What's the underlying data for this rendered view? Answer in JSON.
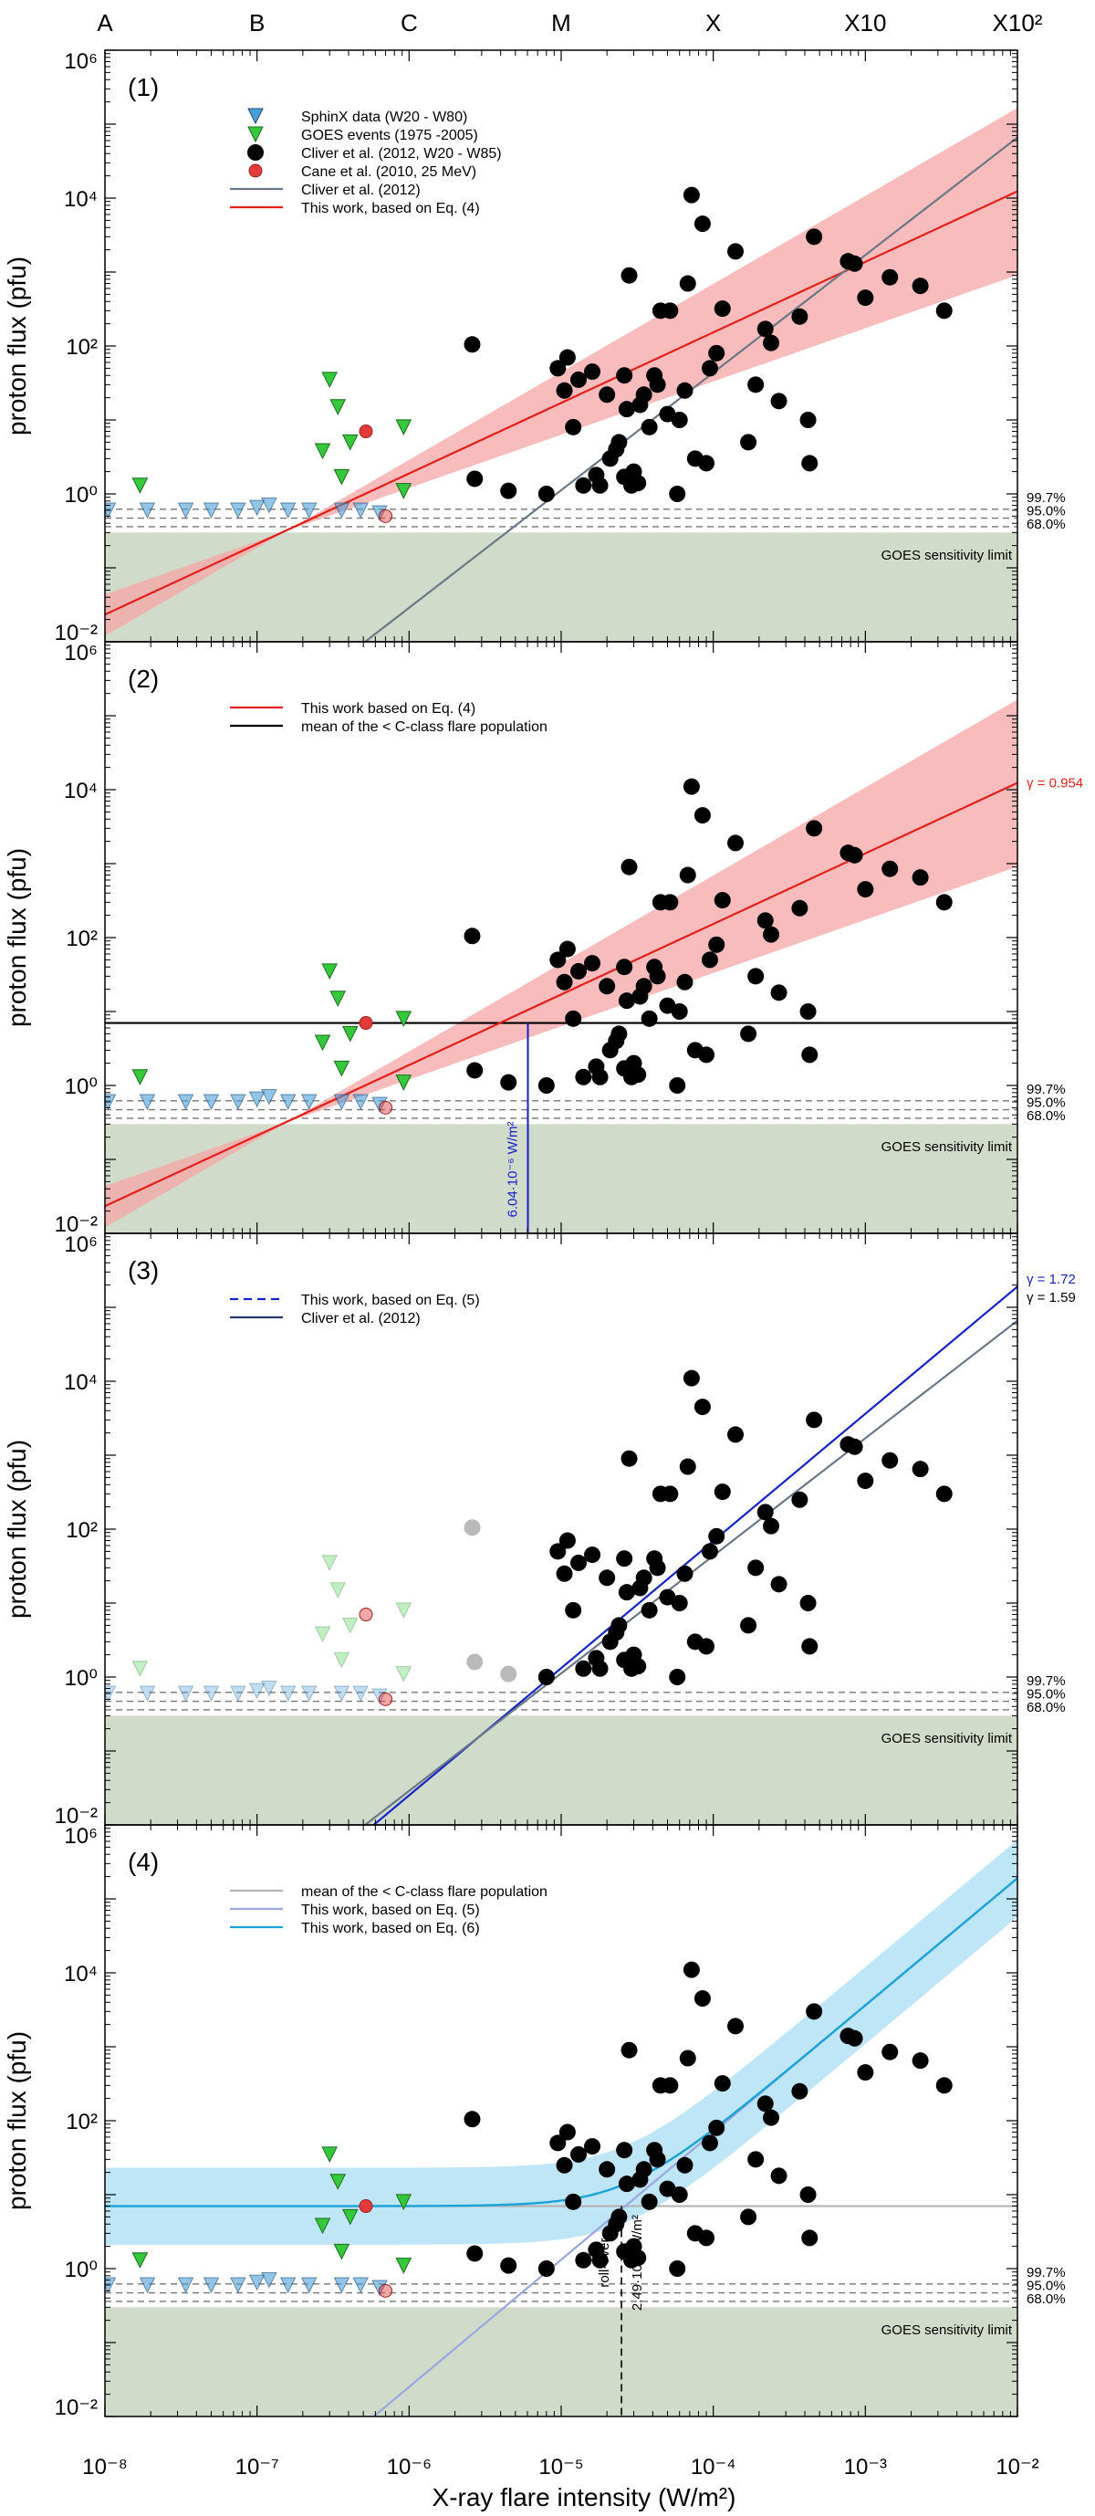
{
  "chart_data": {
    "type": "scatter",
    "title": "",
    "xlabel": "X-ray flare intensity (W/m²)",
    "ylabel": "proton flux (pfu)",
    "xscale": "log",
    "yscale": "log",
    "xlim": [
      1e-08,
      0.01
    ],
    "ylim": [
      0.01,
      1000000
    ],
    "x_tick_labels": [
      "10⁻⁸",
      "10⁻⁷",
      "10⁻⁶",
      "10⁻⁵",
      "10⁻⁴",
      "10⁻³",
      "10⁻²"
    ],
    "y_tick_labels": [
      "10⁻²",
      "10⁰",
      "10²",
      "10⁴",
      "10⁶"
    ],
    "top_axis_classes": [
      {
        "label": "A",
        "x": 1e-08
      },
      {
        "label": "B",
        "x": 1e-07
      },
      {
        "label": "C",
        "x": 1e-06
      },
      {
        "label": "M",
        "x": 1e-05
      },
      {
        "label": "X",
        "x": 0.0001
      },
      {
        "label": "X10",
        "x": 0.001
      },
      {
        "label": "X10²",
        "x": 0.01
      }
    ],
    "confidence_levels": [
      {
        "label": "99.7%",
        "y": 0.62
      },
      {
        "label": "95.0%",
        "y": 0.47
      },
      {
        "label": "68.0%",
        "y": 0.36
      }
    ],
    "sensitivity_label": "GOES sensitivity limit",
    "sensitivity_y": 0.3,
    "cliver_points": [
      [
        2.6e-06,
        105
      ],
      [
        2.7e-06,
        1.6
      ],
      [
        4.5e-06,
        1.1
      ],
      [
        8e-06,
        1.0
      ],
      [
        1.05e-05,
        25
      ],
      [
        9.5e-06,
        50
      ],
      [
        1.1e-05,
        70
      ],
      [
        1.2e-05,
        8
      ],
      [
        1.3e-05,
        35
      ],
      [
        1.4e-05,
        1.3
      ],
      [
        1.6e-05,
        45
      ],
      [
        1.7e-05,
        1.8
      ],
      [
        1.8e-05,
        1.3
      ],
      [
        2e-05,
        22
      ],
      [
        2.1e-05,
        3
      ],
      [
        2.3e-05,
        4
      ],
      [
        2.4e-05,
        5
      ],
      [
        2.6e-05,
        40
      ],
      [
        2.7e-05,
        14
      ],
      [
        2.6e-05,
        1.7
      ],
      [
        2.8e-05,
        900
      ],
      [
        2.9e-05,
        1.3
      ],
      [
        3e-05,
        2
      ],
      [
        3.2e-05,
        1.4
      ],
      [
        3.3e-05,
        16
      ],
      [
        3.5e-05,
        22
      ],
      [
        3.8e-05,
        8
      ],
      [
        4.1e-05,
        40
      ],
      [
        4.3e-05,
        30
      ],
      [
        4.5e-05,
        300
      ],
      [
        5e-05,
        12
      ],
      [
        5.2e-05,
        300
      ],
      [
        5.8e-05,
        1.0
      ],
      [
        6e-05,
        10
      ],
      [
        6.5e-05,
        25
      ],
      [
        6.8e-05,
        700
      ],
      [
        7.2e-05,
        11000
      ],
      [
        7.6e-05,
        3
      ],
      [
        8.5e-05,
        4500
      ],
      [
        9e-05,
        2.6
      ],
      [
        9.5e-05,
        50
      ],
      [
        0.000105,
        80
      ],
      [
        0.000115,
        320
      ],
      [
        0.00014,
        1900
      ],
      [
        0.00017,
        5
      ],
      [
        0.00019,
        30
      ],
      [
        0.00022,
        170
      ],
      [
        0.00024,
        110
      ],
      [
        0.00027,
        18
      ],
      [
        0.00037,
        250
      ],
      [
        0.00042,
        10
      ],
      [
        0.00043,
        2.6
      ],
      [
        0.00046,
        3000
      ],
      [
        0.00077,
        1400
      ],
      [
        0.00085,
        1300
      ],
      [
        0.001,
        450
      ],
      [
        0.00145,
        850
      ],
      [
        0.0023,
        650
      ],
      [
        0.0033,
        300
      ]
    ],
    "goes_events": [
      [
        1.7e-08,
        1.3
      ],
      [
        3e-07,
        35
      ],
      [
        3.4e-07,
        15
      ],
      [
        3.6e-07,
        1.7
      ],
      [
        2.7e-07,
        3.8
      ],
      [
        4.1e-07,
        5
      ],
      [
        9.2e-07,
        8
      ],
      [
        9.2e-07,
        1.1
      ]
    ],
    "sphinx_points": [
      [
        1.05e-08,
        0.6
      ],
      [
        1.9e-08,
        0.6
      ],
      [
        3.4e-08,
        0.6
      ],
      [
        5e-08,
        0.6
      ],
      [
        7.5e-08,
        0.6
      ],
      [
        1e-07,
        0.65
      ],
      [
        1.2e-07,
        0.7
      ],
      [
        1.6e-07,
        0.6
      ],
      [
        2.2e-07,
        0.6
      ],
      [
        3.6e-07,
        0.6
      ],
      [
        4.8e-07,
        0.6
      ],
      [
        6.4e-07,
        0.55
      ]
    ],
    "cane_points": [
      [
        5.2e-07,
        7
      ],
      [
        7e-07,
        0.5
      ]
    ],
    "panels": [
      {
        "id": "(1)",
        "legend": [
          {
            "label": "SphinX data (W20 - W80)",
            "kind": "tri-blue"
          },
          {
            "label": "GOES events (1975 -2005)",
            "kind": "tri-green"
          },
          {
            "label": "Cliver et al. (2012, W20 - W85)",
            "kind": "dot-black"
          },
          {
            "label": "Cane et al. (2010, 25 MeV)",
            "kind": "dot-red"
          },
          {
            "label": "Cliver et al. (2012)",
            "kind": "line-gray"
          },
          {
            "label": "This work, based on Eq. (4)",
            "kind": "line-red"
          }
        ],
        "fits": [
          {
            "name": "This work, based on Eq. (4)",
            "color": "#e3201b",
            "a": 0.954,
            "b": 6.0
          },
          {
            "name": "Cliver et al. (2012)",
            "color": "#6b7786",
            "a": 1.59,
            "b": 8.0
          }
        ],
        "band": {
          "color": "#f7a6a6",
          "a_low": 0.72,
          "b_low": 4.4,
          "a_high": 1.19,
          "b_high": 7.6
        }
      },
      {
        "id": "(2)",
        "legend": [
          {
            "label": "This work based on Eq. (4)",
            "kind": "line-red"
          },
          {
            "label": "mean of the < C-class flare population",
            "kind": "line-black"
          }
        ],
        "fits": [
          {
            "name": "This work based on Eq. (4)",
            "color": "#e3201b",
            "a": 0.954,
            "b": 6.0
          }
        ],
        "band": {
          "color": "#f7a6a6",
          "a_low": 0.72,
          "b_low": 4.4,
          "a_high": 1.19,
          "b_high": 7.6
        },
        "mean_level": 7.0,
        "annotation": {
          "label": "6.04·10⁻⁶ W/m²",
          "x": 6.04e-06
        },
        "gamma": [
          {
            "label": "γ = 0.954",
            "color": "#e3201b"
          }
        ]
      },
      {
        "id": "(3)",
        "legend": [
          {
            "label": "This work, based on Eq. (5)",
            "kind": "line-blue-dashed"
          },
          {
            "label": "Cliver et al. (2012)",
            "kind": "line-navy"
          }
        ],
        "fits": [
          {
            "name": "This work, based on Eq. (5)",
            "color": "#1424c8",
            "a": 1.72,
            "b": 8.72
          },
          {
            "name": "Cliver et al. (2012)",
            "color": "#6b7786",
            "a": 1.59,
            "b": 8.0
          }
        ],
        "gamma": [
          {
            "label": "γ = 1.72",
            "color": "#1424c8"
          },
          {
            "label": "γ = 1.59",
            "color": "#000000"
          }
        ]
      },
      {
        "id": "(4)",
        "legend": [
          {
            "label": "mean of the < C-class flare population",
            "kind": "line-lightgray"
          },
          {
            "label": "This work, based on Eq. (5)",
            "kind": "line-lightblue"
          },
          {
            "label": "This work, based on Eq. (6)",
            "kind": "line-cyan"
          }
        ],
        "fits": [
          {
            "name": "This work, based on Eq. (5)",
            "color": "#9aa6e0",
            "a": 1.72,
            "b": 8.72
          }
        ],
        "mean_level": 7.0,
        "combined": {
          "color": "#1aa3d8",
          "band_color": "#b8e3f5",
          "band_low_factor": 0.3,
          "band_high_factor": 3.3
        },
        "annotation": {
          "label": "roll-over",
          "value_label": "2.49·10⁻⁵ W/m²",
          "x": 2.49e-05
        }
      }
    ]
  }
}
